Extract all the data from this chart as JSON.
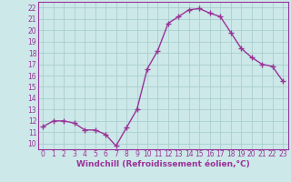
{
  "x": [
    0,
    1,
    2,
    3,
    4,
    5,
    6,
    7,
    8,
    9,
    10,
    11,
    12,
    13,
    14,
    15,
    16,
    17,
    18,
    19,
    20,
    21,
    22,
    23
  ],
  "y": [
    11.5,
    12.0,
    12.0,
    11.8,
    11.2,
    11.2,
    10.8,
    9.8,
    11.4,
    13.0,
    16.6,
    18.2,
    20.6,
    21.2,
    21.8,
    21.9,
    21.5,
    21.2,
    19.8,
    18.4,
    17.6,
    17.0,
    16.8,
    15.5
  ],
  "line_color": "#993399",
  "marker": "+",
  "markersize": 4,
  "markeredgewidth": 1.0,
  "linewidth": 1.0,
  "bg_color": "#cce8e8",
  "grid_color": "#aacece",
  "xlabel": "Windchill (Refroidissement éolien,°C)",
  "xlabel_color": "#993399",
  "xlabel_fontsize": 6.5,
  "tick_color": "#993399",
  "tick_fontsize": 5.5,
  "ylim": [
    9.5,
    22.5
  ],
  "xlim": [
    -0.5,
    23.5
  ],
  "yticks": [
    10,
    11,
    12,
    13,
    14,
    15,
    16,
    17,
    18,
    19,
    20,
    21,
    22
  ],
  "xticks": [
    0,
    1,
    2,
    3,
    4,
    5,
    6,
    7,
    8,
    9,
    10,
    11,
    12,
    13,
    14,
    15,
    16,
    17,
    18,
    19,
    20,
    21,
    22,
    23
  ]
}
